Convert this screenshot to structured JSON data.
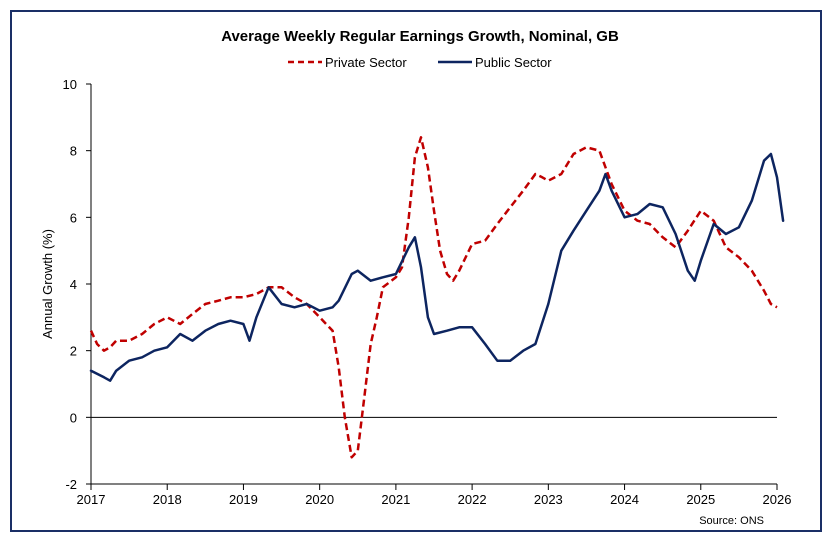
{
  "chart_data": {
    "type": "line",
    "title": "Average Weekly Regular Earnings Growth, Nominal, GB",
    "ylabel": "Annual Growth (%)",
    "xlabel": "",
    "xlim": [
      2017,
      2026
    ],
    "ylim": [
      -2,
      10
    ],
    "yticks": [
      -2,
      0,
      2,
      4,
      6,
      8,
      10
    ],
    "xticks": [
      2017,
      2018,
      2019,
      2020,
      2021,
      2022,
      2023,
      2024,
      2025,
      2026
    ],
    "legend_position": "top-center",
    "source": "Source: ONS",
    "series": [
      {
        "name": "Private Sector",
        "color": "#c00000",
        "style": "dashed",
        "points": [
          [
            2017.0,
            2.6
          ],
          [
            2017.08,
            2.2
          ],
          [
            2017.17,
            2.0
          ],
          [
            2017.25,
            2.1
          ],
          [
            2017.33,
            2.3
          ],
          [
            2017.5,
            2.3
          ],
          [
            2017.67,
            2.5
          ],
          [
            2017.83,
            2.8
          ],
          [
            2018.0,
            3.0
          ],
          [
            2018.17,
            2.8
          ],
          [
            2018.33,
            3.1
          ],
          [
            2018.5,
            3.4
          ],
          [
            2018.67,
            3.5
          ],
          [
            2018.83,
            3.6
          ],
          [
            2019.0,
            3.6
          ],
          [
            2019.17,
            3.7
          ],
          [
            2019.33,
            3.9
          ],
          [
            2019.5,
            3.9
          ],
          [
            2019.67,
            3.6
          ],
          [
            2019.83,
            3.4
          ],
          [
            2020.0,
            3.0
          ],
          [
            2020.17,
            2.6
          ],
          [
            2020.25,
            1.5
          ],
          [
            2020.33,
            0.0
          ],
          [
            2020.42,
            -1.2
          ],
          [
            2020.5,
            -1.0
          ],
          [
            2020.58,
            0.5
          ],
          [
            2020.67,
            2.2
          ],
          [
            2020.75,
            3.0
          ],
          [
            2020.83,
            3.9
          ],
          [
            2021.0,
            4.2
          ],
          [
            2021.08,
            4.5
          ],
          [
            2021.17,
            6.0
          ],
          [
            2021.25,
            7.8
          ],
          [
            2021.33,
            8.4
          ],
          [
            2021.42,
            7.5
          ],
          [
            2021.5,
            6.2
          ],
          [
            2021.58,
            5.0
          ],
          [
            2021.67,
            4.3
          ],
          [
            2021.75,
            4.1
          ],
          [
            2021.83,
            4.4
          ],
          [
            2022.0,
            5.2
          ],
          [
            2022.17,
            5.3
          ],
          [
            2022.33,
            5.8
          ],
          [
            2022.5,
            6.3
          ],
          [
            2022.67,
            6.8
          ],
          [
            2022.83,
            7.3
          ],
          [
            2022.92,
            7.2
          ],
          [
            2023.0,
            7.1
          ],
          [
            2023.17,
            7.3
          ],
          [
            2023.33,
            7.9
          ],
          [
            2023.5,
            8.1
          ],
          [
            2023.67,
            8.0
          ],
          [
            2023.83,
            7.0
          ],
          [
            2024.0,
            6.2
          ],
          [
            2024.17,
            5.9
          ],
          [
            2024.33,
            5.8
          ],
          [
            2024.5,
            5.4
          ],
          [
            2024.67,
            5.1
          ],
          [
            2024.83,
            5.6
          ],
          [
            2025.0,
            6.2
          ],
          [
            2025.17,
            5.9
          ],
          [
            2025.33,
            5.1
          ],
          [
            2025.5,
            4.8
          ],
          [
            2025.67,
            4.4
          ],
          [
            2025.83,
            3.8
          ],
          [
            2025.92,
            3.4
          ],
          [
            2026.0,
            3.3
          ]
        ]
      },
      {
        "name": "Public Sector",
        "color": "#0d2560",
        "style": "solid",
        "points": [
          [
            2017.0,
            1.4
          ],
          [
            2017.17,
            1.2
          ],
          [
            2017.25,
            1.1
          ],
          [
            2017.33,
            1.4
          ],
          [
            2017.5,
            1.7
          ],
          [
            2017.67,
            1.8
          ],
          [
            2017.83,
            2.0
          ],
          [
            2018.0,
            2.1
          ],
          [
            2018.17,
            2.5
          ],
          [
            2018.33,
            2.3
          ],
          [
            2018.5,
            2.6
          ],
          [
            2018.67,
            2.8
          ],
          [
            2018.83,
            2.9
          ],
          [
            2019.0,
            2.8
          ],
          [
            2019.08,
            2.3
          ],
          [
            2019.17,
            3.0
          ],
          [
            2019.33,
            3.9
          ],
          [
            2019.5,
            3.4
          ],
          [
            2019.67,
            3.3
          ],
          [
            2019.83,
            3.4
          ],
          [
            2020.0,
            3.2
          ],
          [
            2020.17,
            3.3
          ],
          [
            2020.25,
            3.5
          ],
          [
            2020.42,
            4.3
          ],
          [
            2020.5,
            4.4
          ],
          [
            2020.67,
            4.1
          ],
          [
            2020.83,
            4.2
          ],
          [
            2021.0,
            4.3
          ],
          [
            2021.17,
            5.1
          ],
          [
            2021.25,
            5.4
          ],
          [
            2021.33,
            4.5
          ],
          [
            2021.42,
            3.0
          ],
          [
            2021.5,
            2.5
          ],
          [
            2021.67,
            2.6
          ],
          [
            2021.83,
            2.7
          ],
          [
            2022.0,
            2.7
          ],
          [
            2022.17,
            2.2
          ],
          [
            2022.33,
            1.7
          ],
          [
            2022.5,
            1.7
          ],
          [
            2022.67,
            2.0
          ],
          [
            2022.83,
            2.2
          ],
          [
            2023.0,
            3.4
          ],
          [
            2023.17,
            5.0
          ],
          [
            2023.33,
            5.6
          ],
          [
            2023.5,
            6.2
          ],
          [
            2023.67,
            6.8
          ],
          [
            2023.75,
            7.3
          ],
          [
            2023.83,
            6.8
          ],
          [
            2024.0,
            6.0
          ],
          [
            2024.17,
            6.1
          ],
          [
            2024.33,
            6.4
          ],
          [
            2024.5,
            6.3
          ],
          [
            2024.67,
            5.5
          ],
          [
            2024.83,
            4.4
          ],
          [
            2024.92,
            4.1
          ],
          [
            2025.0,
            4.7
          ],
          [
            2025.17,
            5.8
          ],
          [
            2025.33,
            5.5
          ],
          [
            2025.5,
            5.7
          ],
          [
            2025.67,
            6.5
          ],
          [
            2025.83,
            7.7
          ],
          [
            2025.92,
            7.9
          ],
          [
            2026.0,
            7.2
          ],
          [
            2026.08,
            5.9
          ]
        ]
      }
    ]
  }
}
